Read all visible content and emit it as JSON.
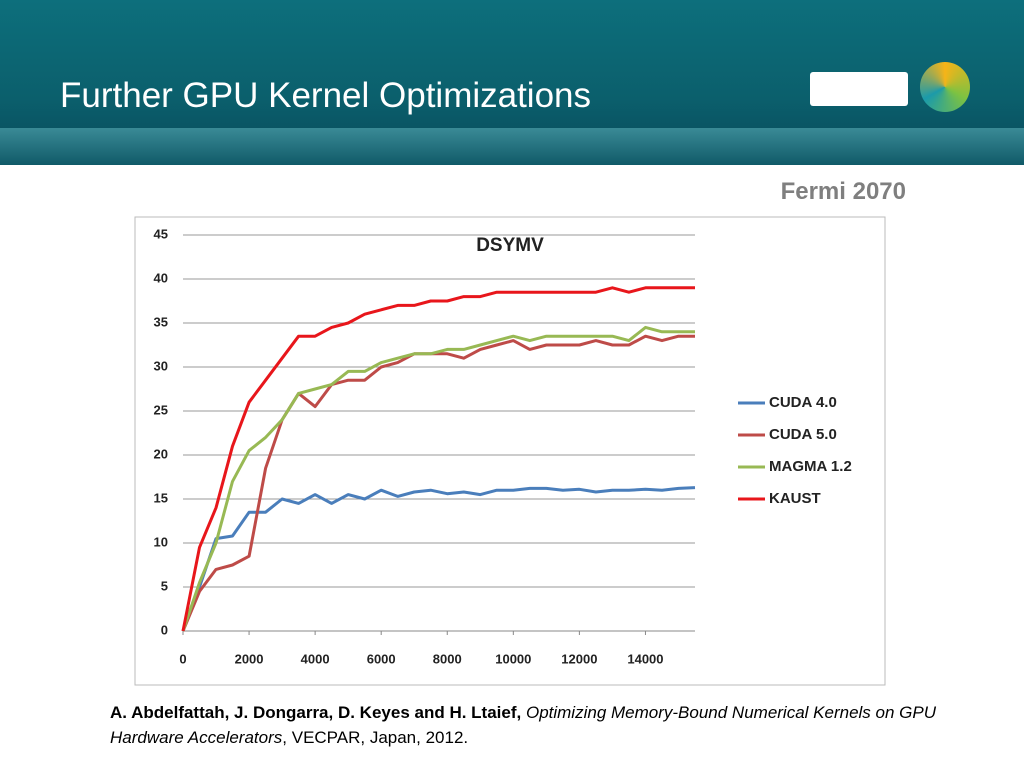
{
  "slide": {
    "title": "Further GPU Kernel Optimizations",
    "subtitle": "Fermi 2070",
    "citation": {
      "authors": "A. Abdelfattah, J. Dongarra, D. Keyes and H. Ltaief,",
      "title": "Optimizing Memory-Bound Numerical Kernels on GPU Hardware Accelerators",
      "venue": ", VECPAR, Japan, 2012."
    }
  },
  "chart_data": {
    "type": "line",
    "title": "DSYMV",
    "x": [
      0,
      500,
      1000,
      1500,
      2000,
      2500,
      3000,
      3500,
      4000,
      4500,
      5000,
      5500,
      6000,
      6500,
      7000,
      7500,
      8000,
      8500,
      9000,
      9500,
      10000,
      10500,
      11000,
      11500,
      12000,
      12500,
      13000,
      13500,
      14000,
      14500,
      15000,
      15500
    ],
    "series": [
      {
        "name": "CUDA 4.0",
        "color": "#4a7ebb",
        "values": [
          0,
          5,
          10.5,
          10.8,
          13.5,
          13.5,
          15,
          14.5,
          15.5,
          14.5,
          15.5,
          15,
          16,
          15.3,
          15.8,
          16,
          15.6,
          15.8,
          15.5,
          16,
          16,
          16.2,
          16.2,
          16,
          16.1,
          15.8,
          16,
          16,
          16.1,
          16,
          16.2,
          16.3
        ]
      },
      {
        "name": "CUDA 5.0",
        "color": "#be4b48",
        "values": [
          0,
          4.5,
          7,
          7.5,
          8.5,
          18.5,
          24,
          27,
          25.5,
          28,
          28.5,
          28.5,
          30,
          30.5,
          31.5,
          31.5,
          31.5,
          31,
          32,
          32.5,
          33,
          32,
          32.5,
          32.5,
          32.5,
          33,
          32.5,
          32.5,
          33.5,
          33,
          33.5,
          33.5
        ]
      },
      {
        "name": "MAGMA 1.2",
        "color": "#98b954",
        "values": [
          0,
          5.5,
          10,
          17,
          20.5,
          22,
          24,
          27,
          27.5,
          28,
          29.5,
          29.5,
          30.5,
          31,
          31.5,
          31.5,
          32,
          32,
          32.5,
          33,
          33.5,
          33,
          33.5,
          33.5,
          33.5,
          33.5,
          33.5,
          33,
          34.5,
          34,
          34,
          34
        ]
      },
      {
        "name": "KAUST",
        "color": "#e8161b",
        "values": [
          0,
          9.5,
          14,
          21,
          26,
          28.5,
          31,
          33.5,
          33.5,
          34.5,
          35,
          36,
          36.5,
          37,
          37,
          37.5,
          37.5,
          38,
          38,
          38.5,
          38.5,
          38.5,
          38.5,
          38.5,
          38.5,
          38.5,
          39,
          38.5,
          39,
          39,
          39,
          39
        ]
      }
    ],
    "xlim": [
      0,
      15500
    ],
    "xticks": [
      0,
      2000,
      4000,
      6000,
      8000,
      10000,
      12000,
      14000
    ],
    "ylim": [
      0,
      45
    ],
    "yticks": [
      0,
      5,
      10,
      15,
      20,
      25,
      30,
      35,
      40,
      45
    ],
    "grid": true,
    "legend": "right"
  }
}
